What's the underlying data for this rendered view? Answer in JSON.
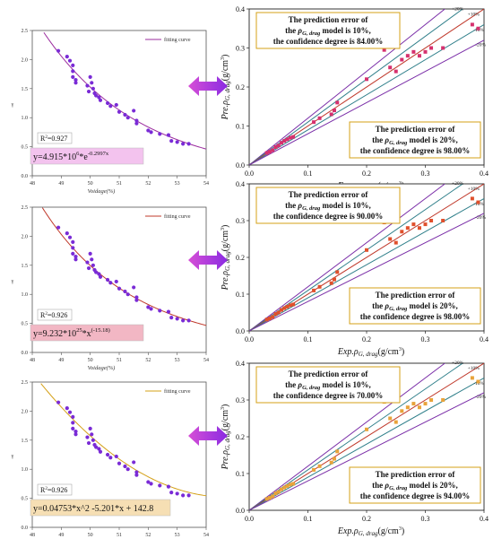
{
  "chart_data": [
    {
      "type": "scatter",
      "panel": "left-1",
      "xlabel": "Voidage(%)",
      "ylabel": "γ",
      "xlim": [
        48,
        54
      ],
      "ylim": [
        0.0,
        2.5
      ],
      "xticks": [
        "48",
        "49",
        "50",
        "51",
        "52",
        "53",
        "54"
      ],
      "yticks": [
        "0.0",
        "0.5",
        "1.0",
        "1.5",
        "2.0",
        "2.5"
      ],
      "legend": "fitting curve",
      "legend_position": "top-right",
      "fit_color": "#9b2c9e",
      "marker_color": "#7a2bd6",
      "r2_label": "R",
      "r2_value": "=0.927",
      "equation": {
        "main": "y=4.915*10",
        "exp1": "6",
        "mid": "*e",
        "exp2": "-0.2997x"
      },
      "eq_bg": "#f3c3ee",
      "fit": {
        "kind": "exp",
        "a": 4915000,
        "b": -0.2997
      }
    },
    {
      "type": "scatter",
      "panel": "left-2",
      "xlabel": "Voidage(%)",
      "ylabel": "γ",
      "xlim": [
        48,
        54
      ],
      "ylim": [
        0.0,
        2.5
      ],
      "xticks": [
        "48",
        "49",
        "50",
        "51",
        "52",
        "53",
        "54"
      ],
      "yticks": [
        "0.0",
        "0.5",
        "1.0",
        "1.5",
        "2.0",
        "2.5"
      ],
      "legend": "fitting curve",
      "legend_position": "top-right",
      "fit_color": "#c0392b",
      "marker_color": "#7a2bd6",
      "r2_label": "R",
      "r2_value": "=0.926",
      "equation": {
        "main": "y=9.232*10",
        "exp1": "25",
        "mid": "*x",
        "exp2": "(-15.18)"
      },
      "eq_bg": "#f2b7c4",
      "fit": {
        "kind": "pow",
        "a": 9.232e+25,
        "b": -15.18
      }
    },
    {
      "type": "scatter",
      "panel": "left-3",
      "xlabel": "Voidage(%)",
      "ylabel": "γ",
      "xlim": [
        48,
        54
      ],
      "ylim": [
        0.0,
        2.5
      ],
      "xticks": [
        "48",
        "49",
        "50",
        "51",
        "52",
        "53",
        "54"
      ],
      "yticks": [
        "0.0",
        "0.5",
        "1.0",
        "1.5",
        "2.0",
        "2.5"
      ],
      "legend": "fitting curve",
      "legend_position": "top-right",
      "fit_color": "#d4a017",
      "marker_color": "#7a2bd6",
      "r2_label": "R",
      "r2_value": "=0.926",
      "equation": {
        "main": "y=0.04753*x^2 -5.201*x + 142.8",
        "exp1": "",
        "mid": "",
        "exp2": ""
      },
      "eq_bg": "#f6dfb4",
      "fit": {
        "kind": "poly",
        "c2": 0.04753,
        "c1": -5.201,
        "c0": 142.8
      }
    },
    {
      "type": "scatter",
      "panel": "right-1",
      "xlabel": "Exp.ρG, drag(g/cm3)",
      "ylabel": "Pre.ρG, drag(g/cm3)",
      "xlim": [
        0.0,
        0.4
      ],
      "ylim": [
        0.0,
        0.4
      ],
      "xticks": [
        "0.0",
        "0.1",
        "0.2",
        "0.3",
        "0.4"
      ],
      "yticks": [
        "0.0",
        "0.1",
        "0.2",
        "0.3",
        "0.4"
      ],
      "lines": [
        "+20%",
        "+10%",
        "-10%",
        "-20%"
      ],
      "box_top": [
        "The prediction error of",
        "the ρG, drag model is 10%,",
        "the confidence degree is 84.00%"
      ],
      "box_bottom": [
        "The prediction error of",
        "the ρG, drag model is 20%,",
        "the confidence degree is 98.00%"
      ],
      "marker_color": "#d6306e"
    },
    {
      "type": "scatter",
      "panel": "right-2",
      "xlabel": "Exp.ρG, drag(g/cm3)",
      "ylabel": "Pre.ρG, drag(g/cm3)",
      "xlim": [
        0.0,
        0.4
      ],
      "ylim": [
        0.0,
        0.4
      ],
      "xticks": [
        "0.0",
        "0.1",
        "0.2",
        "0.3",
        "0.4"
      ],
      "yticks": [
        "0.0",
        "0.1",
        "0.2",
        "0.3",
        "0.4"
      ],
      "lines": [
        "+20%",
        "+10%",
        "-10%",
        "-20%"
      ],
      "box_top": [
        "The prediction error of",
        "the ρG, drag model is 10%,",
        "the confidence degree is 90.00%"
      ],
      "box_bottom": [
        "The prediction error of",
        "the ρG, drag model is 20%,",
        "the confidence degree is 98.00%"
      ],
      "marker_color": "#e0502c"
    },
    {
      "type": "scatter",
      "panel": "right-3",
      "xlabel": "Exp.ρG, drag(g/cm3)",
      "ylabel": "Pre.ρG, drag(g/cm3)",
      "xlim": [
        0.0,
        0.4
      ],
      "ylim": [
        0.0,
        0.4
      ],
      "xticks": [
        "0.0",
        "0.1",
        "0.2",
        "0.3",
        "0.4"
      ],
      "yticks": [
        "0.0",
        "0.1",
        "0.2",
        "0.3",
        "0.4"
      ],
      "lines": [
        "+20%",
        "+10%",
        "-10%",
        "-20%"
      ],
      "box_top": [
        "The prediction error of",
        "the ρG, drag model is 10%,",
        "the confidence degree is 70.00%"
      ],
      "box_bottom": [
        "The prediction error of",
        "the ρG, drag model is 20%,",
        "the confidence degree is 94.00%"
      ],
      "marker_color": "#e8a33a"
    }
  ],
  "left_points": [
    [
      48.9,
      2.15
    ],
    [
      49.2,
      2.05
    ],
    [
      49.3,
      1.98
    ],
    [
      49.4,
      1.9
    ],
    [
      49.4,
      1.8
    ],
    [
      49.4,
      1.7
    ],
    [
      49.5,
      1.65
    ],
    [
      49.5,
      1.6
    ],
    [
      49.9,
      1.55
    ],
    [
      49.95,
      1.45
    ],
    [
      50.0,
      1.7
    ],
    [
      50.05,
      1.6
    ],
    [
      50.1,
      1.5
    ],
    [
      50.15,
      1.42
    ],
    [
      50.2,
      1.38
    ],
    [
      50.3,
      1.35
    ],
    [
      50.35,
      1.3
    ],
    [
      50.6,
      1.25
    ],
    [
      50.7,
      1.2
    ],
    [
      50.9,
      1.22
    ],
    [
      51.0,
      1.1
    ],
    [
      51.2,
      1.05
    ],
    [
      51.3,
      1.0
    ],
    [
      51.5,
      1.12
    ],
    [
      51.6,
      0.95
    ],
    [
      51.6,
      0.9
    ],
    [
      52.0,
      0.78
    ],
    [
      52.1,
      0.75
    ],
    [
      52.4,
      0.72
    ],
    [
      52.7,
      0.7
    ],
    [
      52.8,
      0.6
    ],
    [
      53.0,
      0.58
    ],
    [
      53.2,
      0.55
    ],
    [
      53.4,
      0.55
    ]
  ],
  "right_points": [
    [
      0.03,
      0.031
    ],
    [
      0.035,
      0.034
    ],
    [
      0.04,
      0.038
    ],
    [
      0.045,
      0.046
    ],
    [
      0.05,
      0.05
    ],
    [
      0.055,
      0.057
    ],
    [
      0.06,
      0.062
    ],
    [
      0.065,
      0.066
    ],
    [
      0.07,
      0.07
    ],
    [
      0.075,
      0.072
    ],
    [
      0.11,
      0.11
    ],
    [
      0.12,
      0.12
    ],
    [
      0.14,
      0.13
    ],
    [
      0.145,
      0.14
    ],
    [
      0.15,
      0.16
    ],
    [
      0.2,
      0.22
    ],
    [
      0.23,
      0.295
    ],
    [
      0.24,
      0.25
    ],
    [
      0.25,
      0.24
    ],
    [
      0.26,
      0.27
    ],
    [
      0.27,
      0.28
    ],
    [
      0.28,
      0.29
    ],
    [
      0.29,
      0.28
    ],
    [
      0.3,
      0.29
    ],
    [
      0.31,
      0.3
    ],
    [
      0.33,
      0.3
    ],
    [
      0.38,
      0.36
    ],
    [
      0.39,
      0.35
    ]
  ],
  "line_colors": {
    "plus20": "#7b2fa8",
    "plus10": "#2f7f8a",
    "diag": "#c0392b",
    "minus10": "#2f7f8a",
    "minus20": "#7b2fa8"
  },
  "arrow_colors": {
    "left": "#d64fd6",
    "right": "#8a2be2"
  }
}
